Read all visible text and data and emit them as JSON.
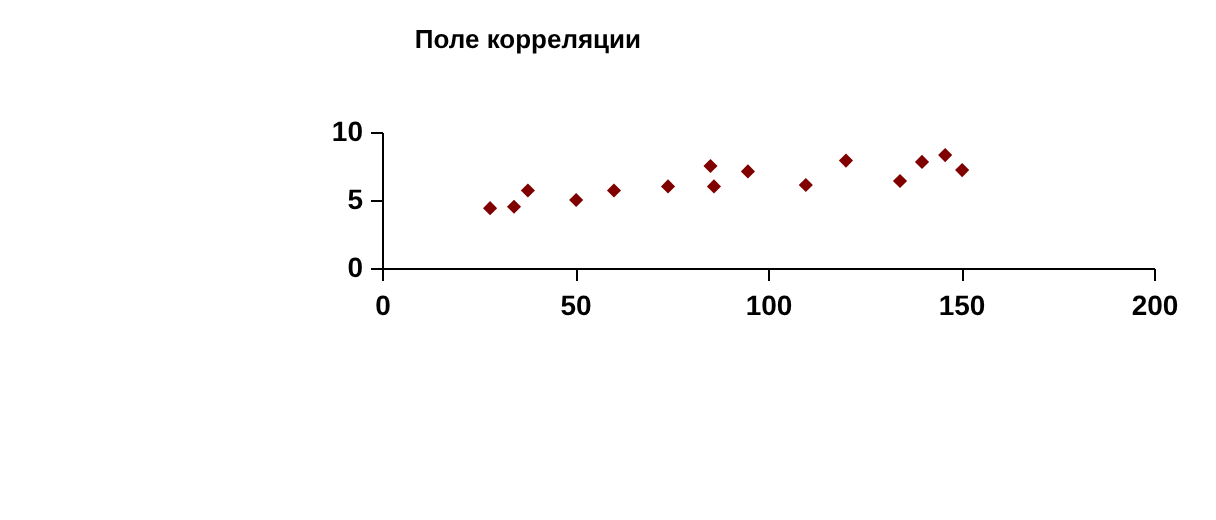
{
  "chart_data": {
    "type": "scatter",
    "title": "Поле корреляции",
    "x": [
      28,
      34.2,
      37.8,
      50.3,
      60.1,
      74.1,
      85.1,
      86,
      94.8,
      109.8,
      120.2,
      134.2,
      139.9,
      145.9,
      150.3
    ],
    "series": [
      {
        "color": "#800000",
        "values": [
          4.4,
          4.5,
          5.7,
          5,
          5.7,
          6,
          7.5,
          6,
          7.1,
          6.1,
          7.9,
          6.4,
          7.8,
          8.3,
          7.2
        ]
      }
    ],
    "xlim": [
      0,
      200
    ],
    "xticks": [
      0,
      50,
      100,
      150,
      200
    ],
    "ylim": [
      0,
      10
    ],
    "yticks": [
      0,
      5,
      10
    ],
    "marker": "diamond",
    "grid": false
  }
}
